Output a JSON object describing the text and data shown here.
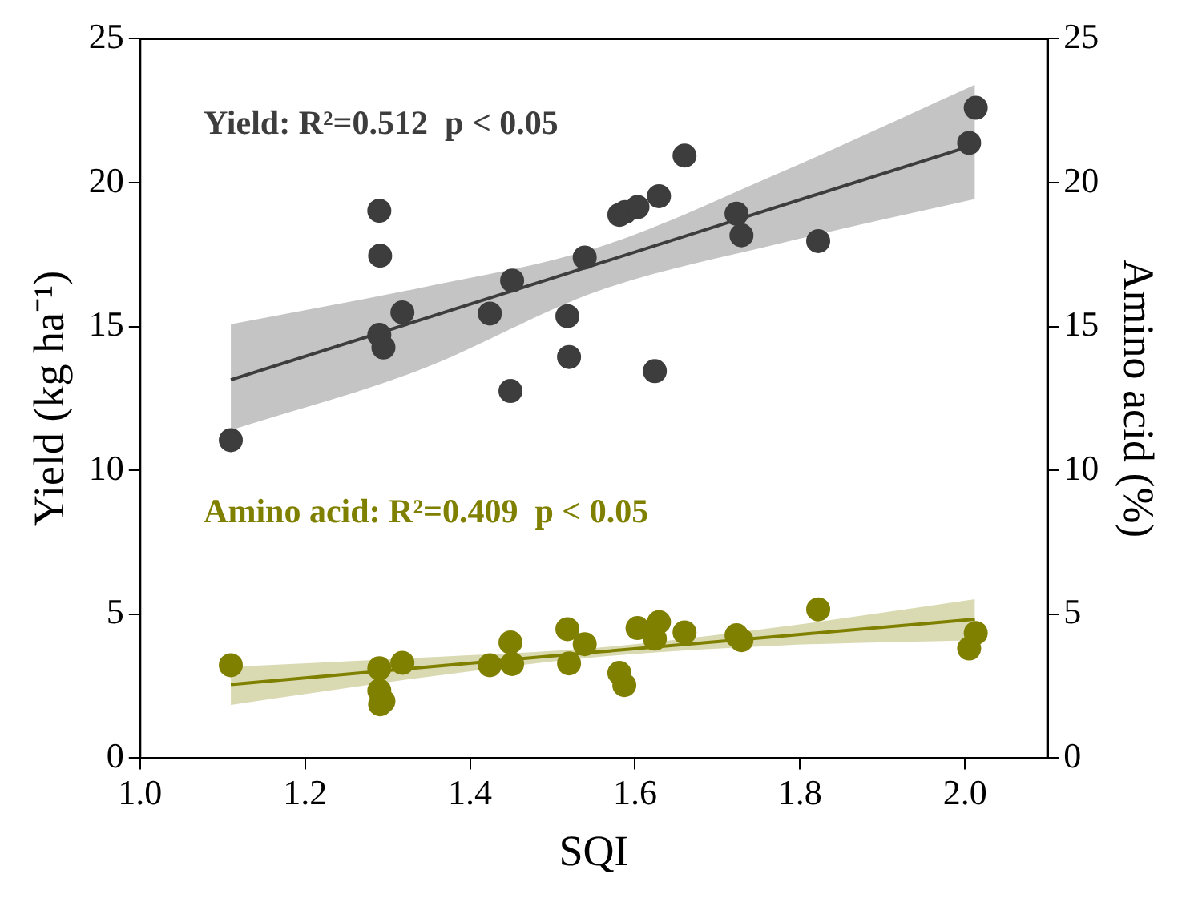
{
  "chart_data": {
    "type": "scatter",
    "xlabel": "SQI",
    "ylabel": "Yield (kg ha⁻¹)",
    "y2label": "Amino acid (%)",
    "xlim": [
      1.0,
      2.1
    ],
    "xticks": [
      {
        "value": 1.0,
        "label": "1.0"
      },
      {
        "value": 1.2,
        "label": "1.2"
      },
      {
        "value": 1.4,
        "label": "1.4"
      },
      {
        "value": 1.6,
        "label": "1.6"
      },
      {
        "value": 1.8,
        "label": "1.8"
      },
      {
        "value": 2.0,
        "label": "2.0"
      }
    ],
    "ylim": [
      0,
      25
    ],
    "yticks": [
      0,
      5,
      10,
      15,
      20,
      25
    ],
    "y2lim": [
      0,
      25
    ],
    "y2ticks": [
      0,
      5,
      10,
      15,
      20,
      25
    ],
    "grid": false,
    "legend": false,
    "marker": "circle",
    "annotations": [
      "Yield: R²=0.512  p < 0.05",
      "Amino acid: R²=0.409  p < 0.05"
    ],
    "series": [
      {
        "color": "#3d3d3d",
        "x": [
          1.11,
          1.29,
          1.291,
          1.318,
          1.29,
          1.295,
          1.424,
          1.451,
          1.449,
          1.539,
          1.518,
          1.52,
          1.581,
          1.588,
          1.603,
          1.629,
          1.66,
          1.624,
          1.723,
          1.729,
          1.822,
          2.005,
          2.013
        ],
        "values": [
          11.05,
          19.02,
          17.46,
          15.49,
          14.71,
          14.27,
          15.45,
          16.6,
          12.76,
          17.4,
          15.36,
          13.94,
          18.88,
          18.98,
          19.15,
          19.53,
          20.94,
          13.45,
          18.92,
          18.17,
          17.97,
          21.38,
          22.6
        ]
      },
      {
        "type": "line",
        "marker": "none",
        "color": "#3d3d3d",
        "x": [
          1.11,
          1.339,
          1.556,
          1.773,
          2.012
        ],
        "values": [
          13.15,
          15.22,
          17.19,
          19.16,
          21.32
        ],
        "lower": [
          11.4,
          13.49,
          16.24,
          17.87,
          19.43
        ],
        "upper": [
          15.08,
          16.34,
          17.76,
          20.31,
          23.4
        ]
      },
      {
        "axis": "y2",
        "color": "#808000",
        "x": [
          1.11,
          1.29,
          1.318,
          1.29,
          1.291,
          1.295,
          1.424,
          1.451,
          1.449,
          1.518,
          1.539,
          1.52,
          1.581,
          1.587,
          1.603,
          1.629,
          1.624,
          1.66,
          1.723,
          1.729,
          1.822,
          2.005,
          2.013
        ],
        "values": [
          3.23,
          3.12,
          3.31,
          2.35,
          1.87,
          1.98,
          3.23,
          3.27,
          4.02,
          4.48,
          3.96,
          3.29,
          2.96,
          2.54,
          4.52,
          4.73,
          4.15,
          4.37,
          4.27,
          4.1,
          5.17,
          3.81,
          4.35
        ]
      },
      {
        "type": "line",
        "marker": "none",
        "axis": "y2",
        "color": "#808000",
        "x": [
          1.11,
          1.339,
          1.556,
          1.773,
          2.012
        ],
        "values": [
          2.56,
          3.14,
          3.69,
          4.23,
          4.83
        ],
        "lower": [
          1.85,
          2.79,
          3.52,
          3.91,
          4.1
        ],
        "upper": [
          3.17,
          3.49,
          3.84,
          4.55,
          5.52
        ]
      }
    ]
  }
}
